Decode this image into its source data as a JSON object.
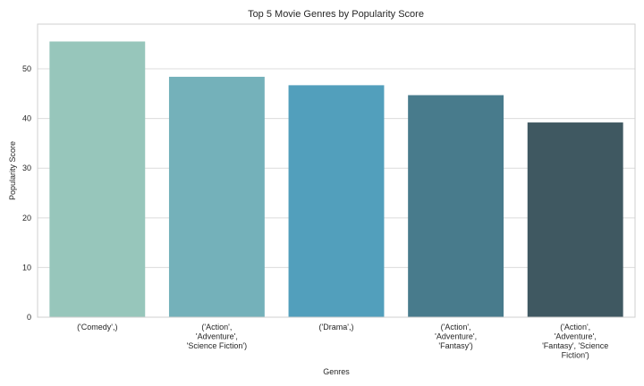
{
  "chart_data": {
    "type": "bar",
    "title": "Top 5 Movie Genres by Popularity Score",
    "xlabel": "Genres",
    "ylabel": "Popularity Score",
    "ylim": [
      0,
      59
    ],
    "yticks": [
      0,
      10,
      20,
      30,
      40,
      50
    ],
    "grid": true,
    "legend": "none",
    "categories": [
      [
        "('Comedy',)"
      ],
      [
        "('Action',",
        "'Adventure',",
        "'Science Fiction')"
      ],
      [
        "('Drama',)"
      ],
      [
        "('Action',",
        "'Adventure',",
        "'Fantasy')"
      ],
      [
        "('Action',",
        "'Adventure',",
        "'Fantasy', 'Science",
        "Fiction')"
      ]
    ],
    "values": [
      55.5,
      48.4,
      46.7,
      44.7,
      39.2
    ],
    "colors": [
      "#97c6bb",
      "#74b1ba",
      "#529fbc",
      "#487b8c",
      "#3f5861"
    ]
  }
}
